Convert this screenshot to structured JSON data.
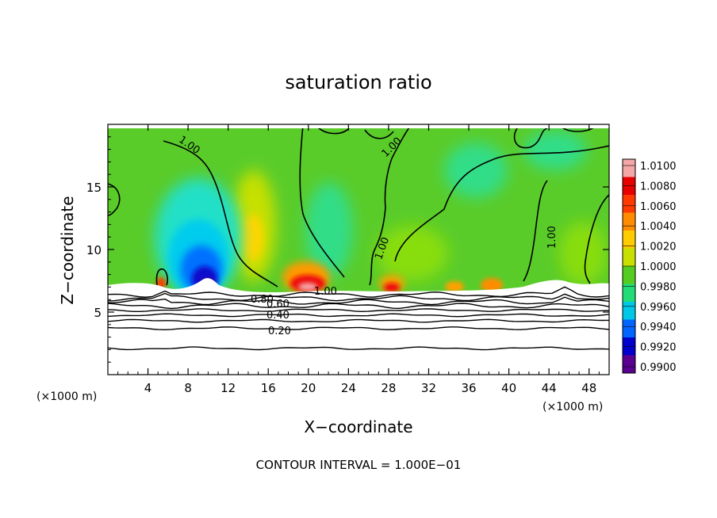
{
  "chart_data": {
    "type": "heatmap",
    "title": "saturation ratio",
    "xlabel": "X−coordinate",
    "ylabel": "Z−coordinate",
    "x_unit": "(×1000 m)",
    "y_unit": "(×1000 m)",
    "xlim": [
      0,
      50
    ],
    "ylim": [
      0,
      20
    ],
    "x_ticks": [
      "4",
      "8",
      "12",
      "16",
      "20",
      "24",
      "28",
      "32",
      "36",
      "40",
      "44",
      "48"
    ],
    "x_tick_values": [
      4,
      8,
      12,
      16,
      20,
      24,
      28,
      32,
      36,
      40,
      44,
      48
    ],
    "y_ticks": [
      "5",
      "10",
      "15"
    ],
    "y_tick_values": [
      5,
      10,
      15
    ],
    "colorbar": {
      "labels": [
        "1.0100",
        "1.0080",
        "1.0060",
        "1.0040",
        "1.0020",
        "1.0000",
        "0.9980",
        "0.9960",
        "0.9940",
        "0.9920",
        "0.9900"
      ],
      "values": [
        1.01,
        1.008,
        1.006,
        1.004,
        1.002,
        1.0,
        0.998,
        0.996,
        0.994,
        0.992,
        0.99
      ],
      "colors": [
        "#f4a7a7",
        "#e60000",
        "#ff3a00",
        "#ff8c00",
        "#ffcc00",
        "#c8e000",
        "#55cc22",
        "#22dd77",
        "#00c8e6",
        "#0066ff",
        "#0000cc",
        "#5a0090"
      ]
    },
    "features": [
      {
        "kind": "minimum",
        "x": 10,
        "z": 8.5,
        "value": 0.992
      },
      {
        "kind": "maximum",
        "x": 19.5,
        "z": 7.2,
        "value": 1.01
      },
      {
        "kind": "maximum",
        "x": 28.5,
        "z": 7.0,
        "value": 1.008
      },
      {
        "kind": "maximum",
        "x": 38.5,
        "z": 7.0,
        "value": 1.004
      },
      {
        "kind": "maximum",
        "x": 34,
        "z": 7.0,
        "value": 1.004
      },
      {
        "kind": "maximum",
        "x": 5.2,
        "z": 7.4,
        "value": 1.006
      },
      {
        "kind": "plume",
        "x": 15,
        "z": 11,
        "value": 1.003
      }
    ],
    "contour_labels": [
      "1.00",
      "1.00",
      "1.00",
      "1.00",
      "1.00",
      "0.80",
      "0.60",
      "0.40",
      "0.20"
    ],
    "contour_label_values": [
      1.0,
      1.0,
      1.0,
      1.0,
      1.0,
      0.8,
      0.6,
      0.4,
      0.2
    ],
    "lower_contour_levels_z": [
      6.4,
      6.1,
      5.8,
      5.5,
      5.15,
      4.75,
      4.3,
      3.7,
      2.1
    ],
    "grid": false,
    "legend": "colorbar-right"
  },
  "footer": "CONTOUR INTERVAL = 1.000E−01"
}
